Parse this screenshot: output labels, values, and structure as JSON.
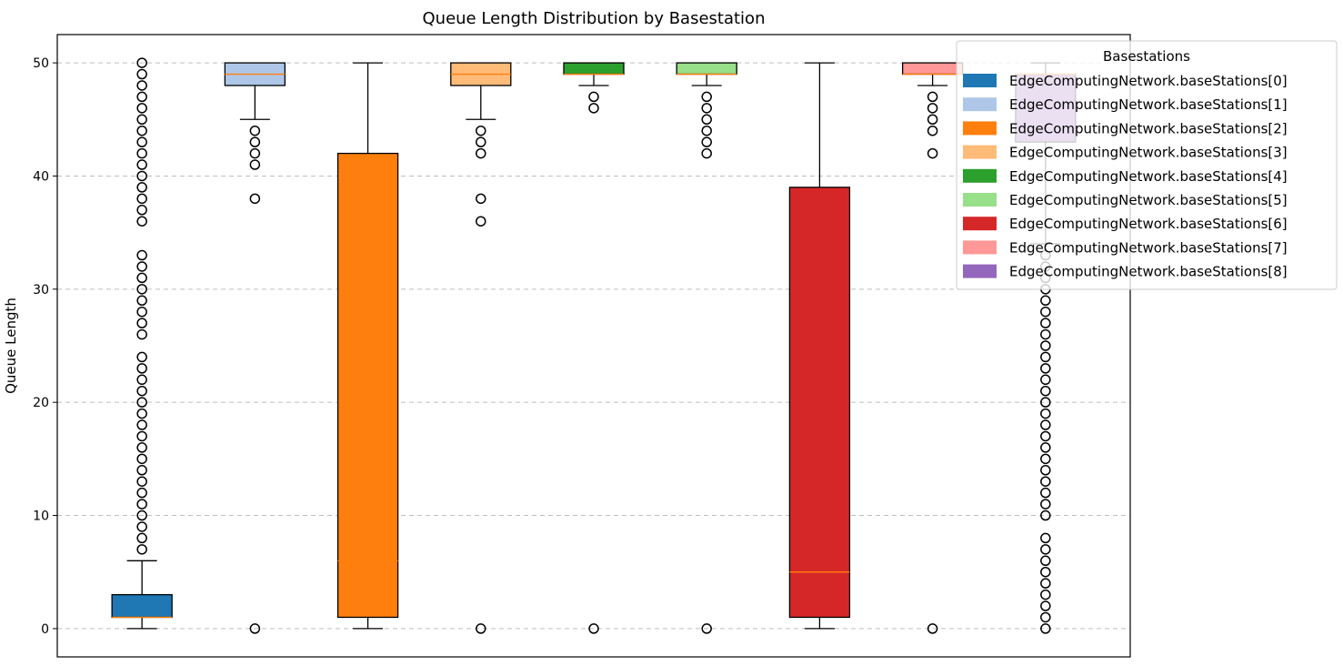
{
  "chart_data": {
    "type": "boxplot",
    "title": "Queue Length Distribution by Basestation",
    "xlabel": "",
    "ylabel": "Queue Length",
    "ylim": [
      -2.5,
      52.5
    ],
    "yticks": [
      0,
      10,
      20,
      30,
      40,
      50
    ],
    "grid": "y-dashed",
    "legend": {
      "title": "Basestations",
      "placement": "top-right",
      "entries": [
        {
          "label": "EdgeComputingNetwork.baseStations[0]",
          "color": "#1f77b4"
        },
        {
          "label": "EdgeComputingNetwork.baseStations[1]",
          "color": "#aec7e8"
        },
        {
          "label": "EdgeComputingNetwork.baseStations[2]",
          "color": "#ff7f0e"
        },
        {
          "label": "EdgeComputingNetwork.baseStations[3]",
          "color": "#ffbb78"
        },
        {
          "label": "EdgeComputingNetwork.baseStations[4]",
          "color": "#2ca02c"
        },
        {
          "label": "EdgeComputingNetwork.baseStations[5]",
          "color": "#98df8a"
        },
        {
          "label": "EdgeComputingNetwork.baseStations[6]",
          "color": "#d62728"
        },
        {
          "label": "EdgeComputingNetwork.baseStations[7]",
          "color": "#ff9896"
        },
        {
          "label": "EdgeComputingNetwork.baseStations[8]",
          "color": "#9467bd"
        }
      ]
    },
    "series": [
      {
        "color": "#1f77b4",
        "q1": 1,
        "median": 1,
        "q3": 3,
        "whisker_low": 0,
        "whisker_high": 6,
        "outliers": [
          7,
          8,
          9,
          10,
          11,
          12,
          13,
          14,
          15,
          16,
          17,
          18,
          19,
          20,
          21,
          22,
          23,
          24,
          26,
          27,
          28,
          29,
          30,
          31,
          32,
          33,
          36,
          37,
          38,
          39,
          40,
          41,
          42,
          43,
          44,
          45,
          46,
          47,
          48,
          49,
          50
        ]
      },
      {
        "color": "#aec7e8",
        "q1": 48,
        "median": 49,
        "q3": 50,
        "whisker_low": 45,
        "whisker_high": 50,
        "outliers": [
          0,
          38,
          41,
          42,
          43,
          44
        ]
      },
      {
        "color": "#ff7f0e",
        "q1": 1,
        "median": 6,
        "q3": 42,
        "whisker_low": 0,
        "whisker_high": 50,
        "outliers": []
      },
      {
        "color": "#ffbb78",
        "q1": 48,
        "median": 49,
        "q3": 50,
        "whisker_low": 45,
        "whisker_high": 50,
        "outliers": [
          0,
          36,
          38,
          42,
          43,
          44
        ]
      },
      {
        "color": "#2ca02c",
        "q1": 49,
        "median": 49,
        "q3": 50,
        "whisker_low": 48,
        "whisker_high": 50,
        "outliers": [
          0,
          46,
          47
        ]
      },
      {
        "color": "#98df8a",
        "q1": 49,
        "median": 49,
        "q3": 50,
        "whisker_low": 48,
        "whisker_high": 50,
        "outliers": [
          0,
          42,
          43,
          44,
          45,
          46,
          47
        ]
      },
      {
        "color": "#d62728",
        "q1": 1,
        "median": 5,
        "q3": 39,
        "whisker_low": 0,
        "whisker_high": 50,
        "outliers": []
      },
      {
        "color": "#ff9896",
        "q1": 49,
        "median": 49,
        "q3": 50,
        "whisker_low": 48,
        "whisker_high": 50,
        "outliers": [
          0,
          42,
          44,
          45,
          46,
          47
        ]
      },
      {
        "color": "#9467bd",
        "q1": 43,
        "median": 49,
        "q3": 49,
        "whisker_low": 34,
        "whisker_high": 50,
        "outliers": [
          0,
          1,
          2,
          3,
          4,
          5,
          6,
          7,
          8,
          10,
          11,
          12,
          13,
          14,
          15,
          16,
          17,
          18,
          19,
          20,
          21,
          22,
          23,
          24,
          25,
          26,
          27,
          28,
          29,
          30,
          31,
          32,
          33
        ]
      }
    ]
  }
}
